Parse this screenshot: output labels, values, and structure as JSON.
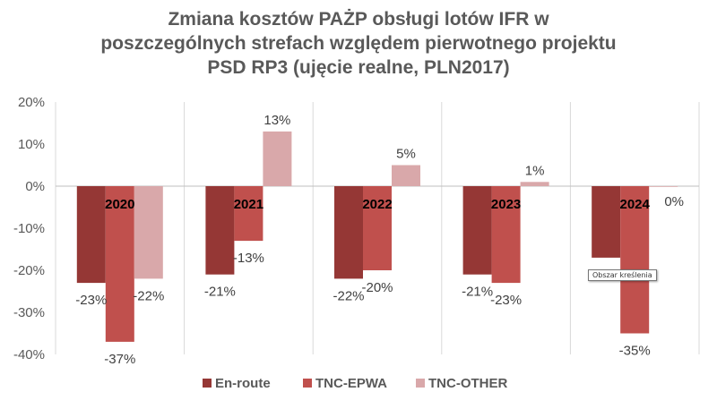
{
  "chart_data": {
    "type": "bar",
    "title_lines": [
      "Zmiana kosztów PAŻP obsługi lotów IFR w",
      "poszczególnych strefach względem pierwotnego projektu",
      "PSD RP3 (ujęcie realne, PLN2017)"
    ],
    "categories": [
      "2020",
      "2021",
      "2022",
      "2023",
      "2024"
    ],
    "series": [
      {
        "name": "En-route",
        "color": "#953735",
        "values": [
          -23,
          -21,
          -22,
          -21,
          -17
        ],
        "labels": [
          "-23%",
          "-21%",
          "-22%",
          "-21%",
          ""
        ]
      },
      {
        "name": "TNC-EPWA",
        "color": "#C0504D",
        "values": [
          -37,
          -13,
          -20,
          -23,
          -35
        ],
        "labels": [
          "-37%",
          "-13%",
          "-20%",
          "-23%",
          "-35%"
        ]
      },
      {
        "name": "TNC-OTHER",
        "color": "#D9A8AA",
        "values": [
          -22,
          13,
          5,
          1,
          0
        ],
        "labels": [
          "-22%",
          "13%",
          "5%",
          "1%",
          "0%"
        ]
      }
    ],
    "yticks": [
      "20%",
      "10%",
      "0%",
      "-10%",
      "-20%",
      "-30%",
      "-40%"
    ],
    "ylim": [
      -40,
      20
    ],
    "grid": "vertical category separators",
    "legend": "bottom",
    "xlabel": "",
    "ylabel": ""
  },
  "tooltip": {
    "text": "Obszar kreślenia"
  }
}
